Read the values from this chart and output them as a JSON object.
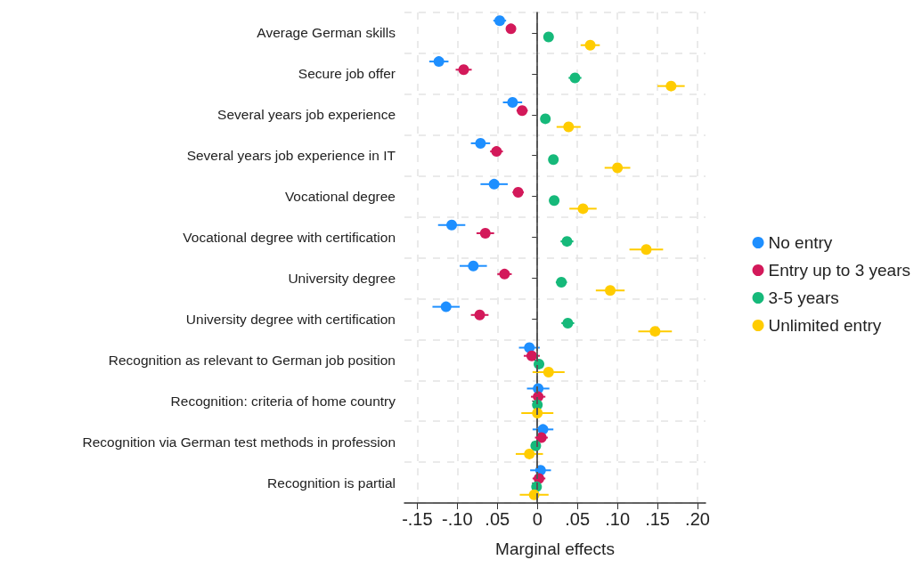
{
  "chart_data": {
    "type": "scatter",
    "orientation": "horizontal",
    "xlabel": "Marginal effects",
    "categories": [
      "Average German skills",
      "Secure job offer",
      "Several years job experience",
      "Several years job experience in IT",
      "Vocational degree",
      "Vocational degree with certification",
      "University degree",
      "University degree with certification",
      "Recognition as relevant to German job position",
      "Recognition: criteria of home country",
      "Recognition via German test methods in profession",
      "Recognition is partial"
    ],
    "series": [
      {
        "name": "No entry",
        "color": "#1e8fff",
        "values": [
          -0.047,
          -0.123,
          -0.031,
          -0.071,
          -0.054,
          -0.107,
          -0.08,
          -0.114,
          -0.01,
          0.001,
          0.007,
          0.004
        ],
        "errors": [
          0.008,
          0.012,
          0.012,
          0.012,
          0.017,
          0.017,
          0.017,
          0.017,
          0.013,
          0.014,
          0.013,
          0.013
        ]
      },
      {
        "name": "Entry up to 3 years",
        "color": "#d3195a",
        "values": [
          -0.033,
          -0.092,
          -0.019,
          -0.051,
          -0.024,
          -0.065,
          -0.041,
          -0.072,
          -0.007,
          0.001,
          0.005,
          0.002
        ],
        "errors": [
          0.004,
          0.01,
          0.007,
          0.008,
          0.007,
          0.011,
          0.009,
          0.011,
          0.01,
          0.009,
          0.008,
          0.008
        ]
      },
      {
        "name": "3-5 years",
        "color": "#16b97a",
        "values": [
          0.014,
          0.047,
          0.01,
          0.02,
          0.021,
          0.037,
          0.03,
          0.038,
          0.002,
          0.0,
          -0.002,
          -0.001
        ],
        "errors": [
          0.002,
          0.008,
          0.003,
          0.003,
          0.006,
          0.008,
          0.007,
          0.008,
          0.003,
          0.002,
          0.003,
          0.002
        ]
      },
      {
        "name": "Unlimited entry",
        "color": "#ffcc00",
        "values": [
          0.066,
          0.167,
          0.039,
          0.1,
          0.057,
          0.136,
          0.091,
          0.147,
          0.014,
          0.0,
          -0.01,
          -0.004
        ],
        "errors": [
          0.012,
          0.017,
          0.015,
          0.016,
          0.017,
          0.021,
          0.018,
          0.021,
          0.02,
          0.02,
          0.017,
          0.018
        ]
      }
    ],
    "xlim": [
      -0.166,
      0.21
    ],
    "xticks": [
      {
        "value": -0.15,
        "label": "-.15"
      },
      {
        "value": -0.1,
        "label": "-.10"
      },
      {
        "value": -0.05,
        "label": ".05"
      },
      0,
      {
        "value": 0.05,
        "label": ".05"
      },
      {
        "value": 0.1,
        "label": ".10"
      },
      {
        "value": 0.15,
        "label": ".15"
      },
      {
        "value": 0.2,
        "label": ".20"
      }
    ],
    "ref_lines": [
      {
        "axis": "x",
        "value": 0,
        "color": "#555555",
        "line_style": "dashed"
      }
    ],
    "grid": true,
    "legend": "right",
    "marker": "circle"
  }
}
